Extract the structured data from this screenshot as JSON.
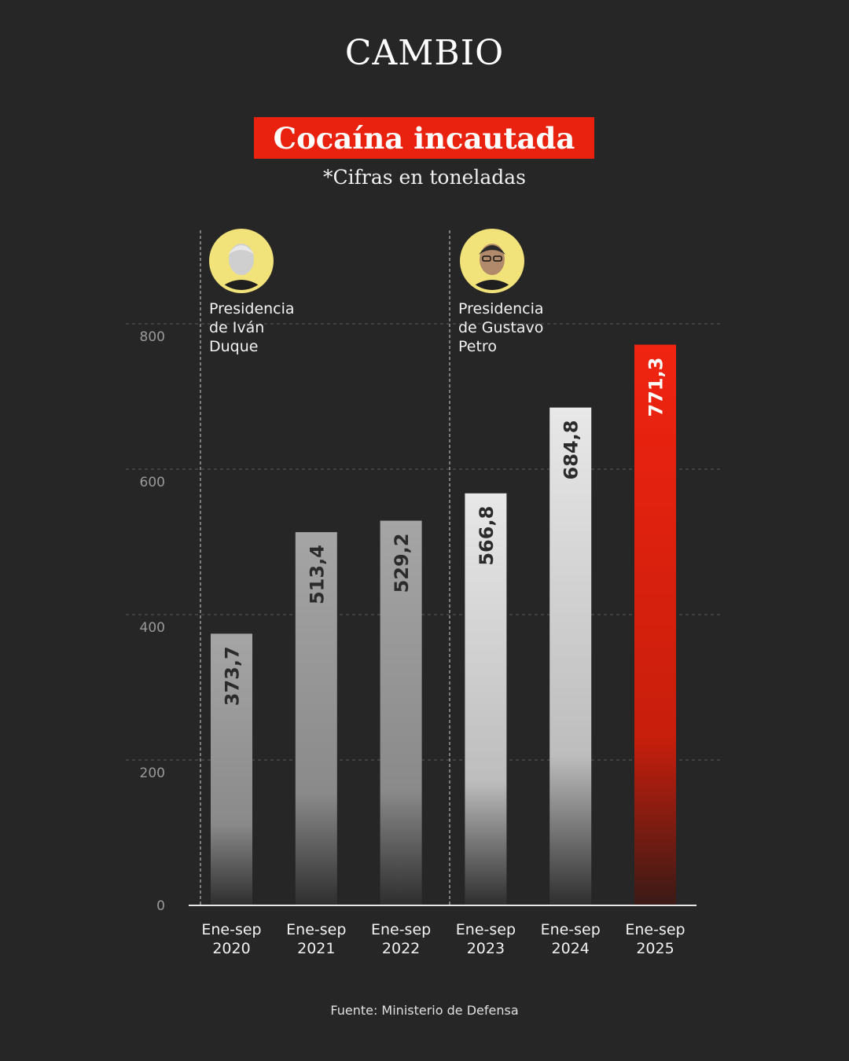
{
  "header": {
    "brand": "CAMBIO",
    "title": "Cocaína incautada",
    "subtitle": "*Cifras en toneladas"
  },
  "footer": {
    "source": "Fuente: Ministerio de Defensa"
  },
  "colors": {
    "background": "#262626",
    "accent": "#e8220e",
    "bar_light": "#e6e6e6",
    "bar_gray": "#9a9a9a"
  },
  "chart_data": {
    "type": "bar",
    "categories": [
      [
        "Ene-sep",
        "2020"
      ],
      [
        "Ene-sep",
        "2021"
      ],
      [
        "Ene-sep",
        "2022"
      ],
      [
        "Ene-sep",
        "2023"
      ],
      [
        "Ene-sep",
        "2024"
      ],
      [
        "Ene-sep",
        "2025"
      ]
    ],
    "values": [
      373.7,
      513.4,
      529.2,
      566.8,
      684.8,
      771.3
    ],
    "value_labels": [
      "373,7",
      "513,4",
      "529,2",
      "566,8",
      "684,8",
      "771,3"
    ],
    "highlight_index": 5,
    "ylim": [
      0,
      800
    ],
    "yticks": [
      0,
      200,
      400,
      600,
      800
    ],
    "grid": true,
    "annotations": [
      {
        "before_category_index": 0,
        "label": [
          "Presidencia",
          "de Iván",
          "Duque"
        ],
        "portrait": "Iván Duque portrait"
      },
      {
        "before_category_index": 3,
        "label": [
          "Presidencia",
          "de Gustavo",
          "Petro"
        ],
        "portrait": "Gustavo Petro portrait"
      }
    ]
  }
}
